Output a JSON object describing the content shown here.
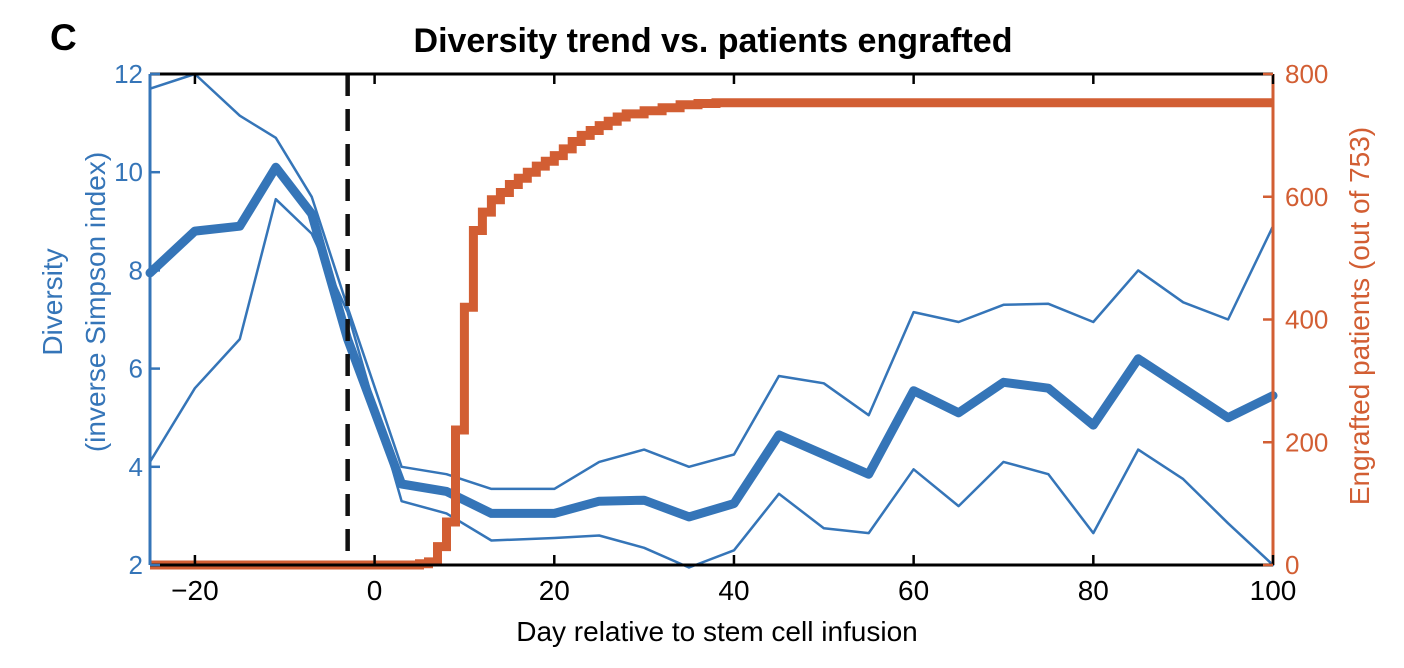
{
  "panel_label": "C",
  "chart_data": {
    "type": "line",
    "title": "Diversity trend vs. patients engrafted",
    "xlabel": "Day relative to stem cell infusion",
    "ylabel_left_line1": "Diversity",
    "ylabel_left_line2": "(inverse Simpson index)",
    "ylabel_right": "Engrafted patients (out of 753)",
    "xlim": [
      -25,
      100
    ],
    "ylim_left": [
      2,
      12
    ],
    "ylim_right": [
      0,
      800
    ],
    "xticks": [
      -20,
      0,
      20,
      40,
      60,
      80,
      100
    ],
    "xtick_labels": [
      "−20",
      "0",
      "20",
      "40",
      "60",
      "80",
      "100"
    ],
    "yticks_left": [
      2,
      4,
      6,
      8,
      10,
      12
    ],
    "yticks_right": [
      0,
      200,
      400,
      600,
      800
    ],
    "colors": {
      "diversity": "#3575b8",
      "engrafted": "#d25e33",
      "infusion_line": "#111111",
      "axis": "#000000"
    },
    "infusion_day": -3,
    "diversity_series": [
      {
        "role": "median",
        "x": [
          -25,
          -20,
          -15,
          -11,
          -7,
          -3,
          3,
          8,
          13,
          20,
          25,
          30,
          35,
          40,
          45,
          50,
          55,
          60,
          65,
          70,
          75,
          80,
          85,
          90,
          95,
          100
        ],
        "y": [
          7.95,
          8.8,
          8.9,
          10.1,
          9.15,
          6.6,
          3.65,
          3.5,
          3.05,
          3.05,
          3.3,
          3.32,
          2.98,
          3.25,
          4.65,
          4.25,
          3.85,
          5.55,
          5.1,
          5.72,
          5.6,
          4.85,
          6.2,
          5.6,
          5.0,
          5.45
        ]
      },
      {
        "role": "upper",
        "x": [
          -25,
          -20,
          -15,
          -11,
          -7,
          -3,
          3,
          8,
          13,
          20,
          25,
          30,
          35,
          40,
          45,
          50,
          55,
          60,
          65,
          70,
          75,
          80,
          85,
          90,
          95,
          100
        ],
        "y": [
          11.7,
          12.0,
          11.15,
          10.7,
          9.5,
          7.25,
          4.0,
          3.85,
          3.55,
          3.55,
          4.1,
          4.35,
          4.0,
          4.25,
          5.85,
          5.7,
          5.05,
          7.15,
          6.95,
          7.3,
          7.32,
          6.95,
          8.0,
          7.35,
          7.0,
          8.9
        ]
      },
      {
        "role": "lower",
        "x": [
          -25,
          -20,
          -15,
          -11,
          -7,
          -3,
          3,
          8,
          13,
          20,
          25,
          30,
          35,
          40,
          45,
          50,
          55,
          60,
          65,
          70,
          75,
          80,
          85,
          90,
          95,
          100
        ],
        "y": [
          4.1,
          5.6,
          6.6,
          9.45,
          8.75,
          7.15,
          3.3,
          3.05,
          2.5,
          2.55,
          2.6,
          2.35,
          1.95,
          2.3,
          3.45,
          2.75,
          2.65,
          3.95,
          3.2,
          4.1,
          3.85,
          2.65,
          4.35,
          3.75,
          2.85,
          2.0
        ]
      }
    ],
    "engrafted_series": {
      "x": [
        -25,
        5,
        6,
        7,
        8,
        9,
        10,
        11,
        12,
        13,
        14,
        15,
        16,
        17,
        18,
        19,
        20,
        21,
        22,
        23,
        24,
        25,
        26,
        27,
        28,
        30,
        32,
        34,
        36,
        38,
        40,
        100
      ],
      "y": [
        0,
        2,
        5,
        30,
        70,
        220,
        420,
        545,
        575,
        595,
        607,
        620,
        630,
        640,
        650,
        658,
        667,
        678,
        690,
        700,
        708,
        716,
        723,
        730,
        735,
        740,
        745,
        750,
        752,
        753,
        753,
        753
      ]
    }
  }
}
